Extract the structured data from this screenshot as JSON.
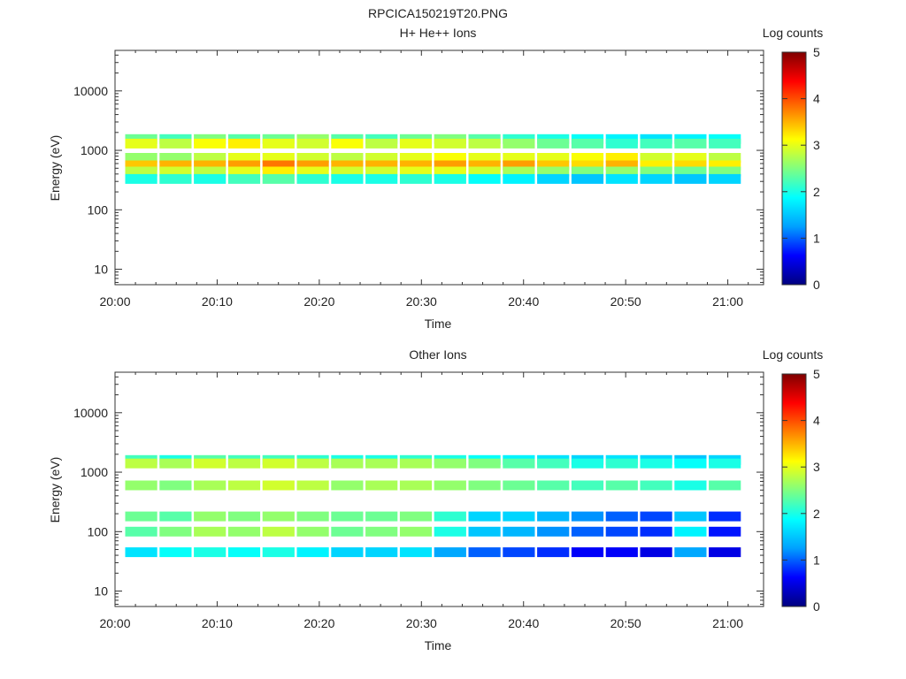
{
  "figure": {
    "title": "RPCICA150219T20.PNG"
  },
  "colorscale": {
    "stops": [
      "#00007f",
      "#0000ff",
      "#00a0ff",
      "#00ffff",
      "#80ff80",
      "#ffff00",
      "#ff8000",
      "#ff0000",
      "#7f0000"
    ]
  },
  "chart_data": [
    {
      "type": "heatmap",
      "title": "H+ He++ Ions",
      "xlabel": "Time",
      "ylabel": "Energy (eV)",
      "x_ticks": [
        "20:00",
        "20:10",
        "20:20",
        "20:30",
        "20:40",
        "20:50",
        "21:00"
      ],
      "x_tick_values": [
        0,
        10,
        20,
        30,
        40,
        50,
        60
      ],
      "xlim": [
        0,
        63.5
      ],
      "y_scale": "log",
      "y_ticks": [
        "10",
        "100",
        "1000",
        "10000"
      ],
      "y_tick_values": [
        10,
        100,
        1000,
        10000
      ],
      "ylim": [
        5.5,
        48000
      ],
      "colorbar": {
        "label": "Log counts",
        "ticks": [
          "0",
          "1",
          "2",
          "3",
          "4",
          "5"
        ],
        "range": [
          0,
          5
        ]
      },
      "time_bins_min": 18,
      "time_bin_width_min": 3.2,
      "energy_bands": [
        {
          "energy_ev": 1550,
          "log_counts": [
            2.4,
            2.2,
            2.5,
            2.3,
            2.4,
            2.6,
            2.3,
            2.2,
            2.4,
            2.5,
            2.3,
            2.1,
            2.0,
            1.9,
            1.8,
            1.7,
            1.8,
            1.9
          ]
        },
        {
          "energy_ev": 1300,
          "log_counts": [
            3.0,
            2.8,
            3.1,
            3.2,
            3.0,
            2.9,
            3.1,
            2.8,
            3.0,
            2.9,
            2.8,
            2.6,
            2.4,
            2.3,
            2.1,
            2.2,
            2.3,
            2.2
          ]
        },
        {
          "energy_ev": 750,
          "log_counts": [
            2.6,
            2.6,
            2.8,
            3.0,
            3.0,
            2.9,
            2.8,
            2.9,
            3.0,
            3.1,
            3.0,
            3.0,
            3.0,
            3.1,
            3.2,
            2.9,
            3.0,
            2.8
          ]
        },
        {
          "energy_ev": 560,
          "log_counts": [
            3.4,
            3.5,
            3.5,
            3.6,
            3.8,
            3.6,
            3.5,
            3.5,
            3.5,
            3.6,
            3.5,
            3.6,
            3.4,
            3.3,
            3.5,
            3.2,
            3.3,
            3.2
          ]
        },
        {
          "energy_ev": 440,
          "log_counts": [
            2.8,
            2.9,
            2.8,
            3.0,
            3.2,
            3.0,
            2.9,
            2.9,
            3.0,
            3.0,
            2.9,
            2.7,
            2.6,
            2.5,
            2.6,
            2.5,
            2.4,
            2.5
          ]
        },
        {
          "energy_ev": 330,
          "log_counts": [
            2.0,
            2.1,
            2.0,
            2.2,
            2.3,
            2.1,
            2.0,
            2.0,
            2.1,
            2.0,
            1.9,
            1.8,
            1.6,
            1.5,
            1.7,
            1.6,
            1.5,
            1.6
          ]
        }
      ]
    },
    {
      "type": "heatmap",
      "title": "Other Ions",
      "xlabel": "Time",
      "ylabel": "Energy (eV)",
      "x_ticks": [
        "20:00",
        "20:10",
        "20:20",
        "20:30",
        "20:40",
        "20:50",
        "21:00"
      ],
      "x_tick_values": [
        0,
        10,
        20,
        30,
        40,
        50,
        60
      ],
      "xlim": [
        0,
        63.5
      ],
      "y_scale": "log",
      "y_ticks": [
        "10",
        "100",
        "1000",
        "10000"
      ],
      "y_tick_values": [
        10,
        100,
        1000,
        10000
      ],
      "ylim": [
        5.5,
        48000
      ],
      "colorbar": {
        "label": "Log counts",
        "ticks": [
          "0",
          "1",
          "2",
          "3",
          "4",
          "5"
        ],
        "range": [
          0,
          5
        ]
      },
      "time_bins_min": 18,
      "time_bin_width_min": 3.2,
      "energy_bands": [
        {
          "energy_ev": 1600,
          "log_counts": [
            2.2,
            2.0,
            2.3,
            2.2,
            2.2,
            2.1,
            2.0,
            2.0,
            2.1,
            2.0,
            1.9,
            1.8,
            1.7,
            1.6,
            1.7,
            1.6,
            1.5,
            1.6
          ]
        },
        {
          "energy_ev": 1400,
          "log_counts": [
            2.8,
            2.7,
            2.9,
            2.8,
            2.9,
            2.8,
            2.7,
            2.7,
            2.7,
            2.6,
            2.5,
            2.3,
            2.2,
            2.0,
            2.1,
            2.0,
            1.9,
            2.0
          ]
        },
        {
          "energy_ev": 600,
          "log_counts": [
            2.6,
            2.5,
            2.7,
            2.8,
            2.9,
            2.8,
            2.6,
            2.7,
            2.7,
            2.6,
            2.5,
            2.4,
            2.3,
            2.2,
            2.3,
            2.2,
            2.0,
            2.3
          ]
        },
        {
          "energy_ev": 180,
          "log_counts": [
            2.4,
            2.3,
            2.6,
            2.5,
            2.6,
            2.5,
            2.4,
            2.4,
            2.5,
            2.1,
            1.6,
            1.6,
            1.4,
            1.2,
            1.0,
            0.9,
            1.5,
            0.8
          ]
        },
        {
          "energy_ev": 100,
          "log_counts": [
            2.3,
            2.5,
            2.7,
            2.6,
            2.8,
            2.6,
            2.4,
            2.5,
            2.6,
            2.0,
            1.5,
            1.4,
            1.2,
            1.0,
            0.9,
            0.8,
            1.8,
            0.7
          ]
        },
        {
          "energy_ev": 45,
          "log_counts": [
            1.7,
            1.9,
            2.0,
            1.9,
            2.0,
            1.8,
            1.6,
            1.6,
            1.7,
            1.3,
            1.0,
            0.9,
            0.8,
            0.6,
            0.6,
            0.5,
            1.3,
            0.5
          ]
        }
      ]
    }
  ]
}
